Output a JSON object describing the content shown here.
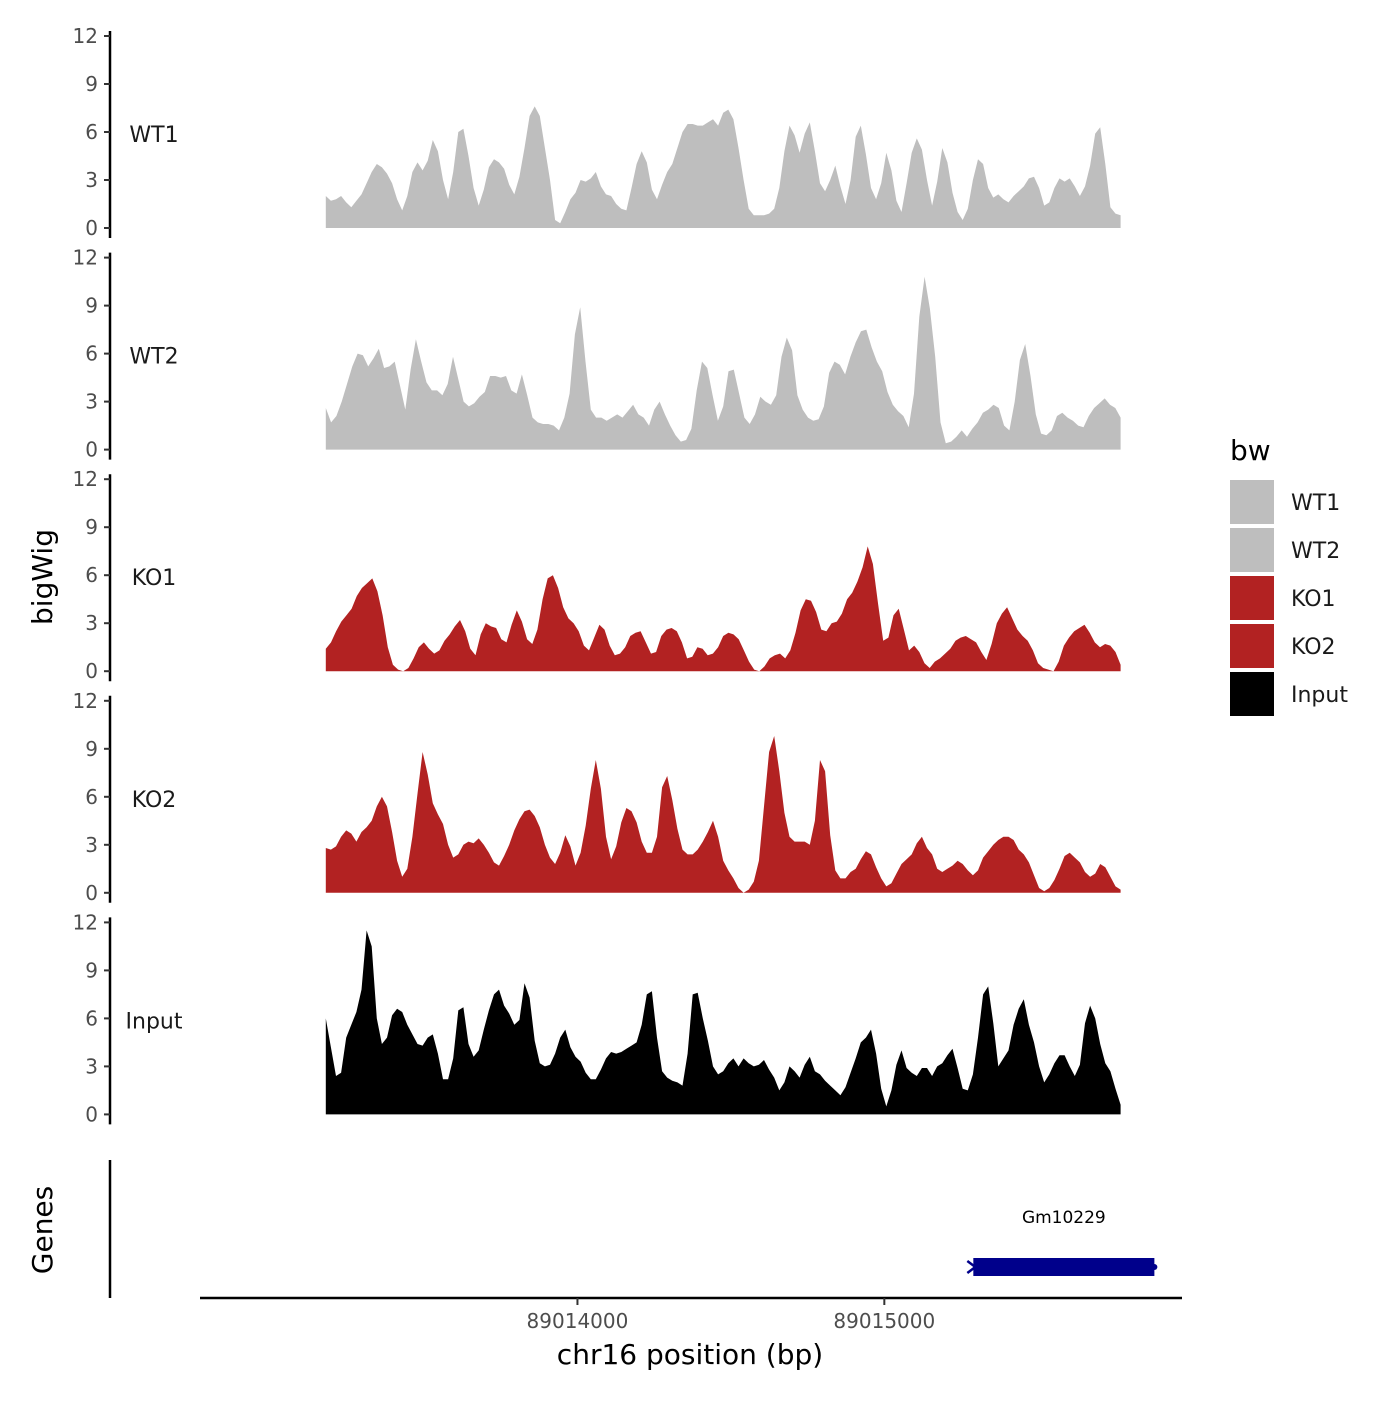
{
  "chart_data": {
    "type": "area",
    "xlabel": "chr16 position (bp)",
    "ylabel": "bigWig",
    "gene_track_label": "Genes",
    "xlim": [
      89012770,
      89015970
    ],
    "ylim": [
      0,
      12
    ],
    "yticks": [
      "0",
      "3",
      "6",
      "9",
      "12"
    ],
    "xticks": [
      {
        "value": 89014000,
        "label": "89014000"
      },
      {
        "value": 89015000,
        "label": "89015000"
      }
    ],
    "x_start": 89013180,
    "x_end": 89015770,
    "legend": {
      "title": "bw",
      "placement": "right",
      "entries": [
        {
          "name": "WT1",
          "color": "#bebebe"
        },
        {
          "name": "WT2",
          "color": "#bebebe"
        },
        {
          "name": "KO1",
          "color": "#b22222"
        },
        {
          "name": "KO2",
          "color": "#b22222"
        },
        {
          "name": "Input",
          "color": "#000000"
        }
      ]
    },
    "series": [
      {
        "name": "WT1",
        "color": "#bebebe",
        "values": [
          2.0,
          1.7,
          1.8,
          2.0,
          1.6,
          1.3,
          1.7,
          2.1,
          2.8,
          3.5,
          4.0,
          3.8,
          3.4,
          2.8,
          1.8,
          1.1,
          2.0,
          3.5,
          4.1,
          3.6,
          4.2,
          5.5,
          4.8,
          3.0,
          1.8,
          3.5,
          6.0,
          6.2,
          4.5,
          2.5,
          1.4,
          2.4,
          3.8,
          4.3,
          4.1,
          3.7,
          2.7,
          2.1,
          3.2,
          5.0,
          7.0,
          7.6,
          7.0,
          5.0,
          3.0,
          0.5,
          0.3,
          1.0,
          1.8,
          2.2,
          3.0,
          2.9,
          3.1,
          3.5,
          2.6,
          2.1,
          2.0,
          1.5,
          1.2,
          1.1,
          2.5,
          4.0,
          4.8,
          4.1,
          2.4,
          1.8,
          2.7,
          3.5,
          4.0,
          5.0,
          6.0,
          6.5,
          6.5,
          6.4,
          6.4,
          6.6,
          6.8,
          6.4,
          7.2,
          7.4,
          6.8,
          5.0,
          3.0,
          1.2,
          0.8,
          0.8,
          0.8,
          0.9,
          1.2,
          2.5,
          4.8,
          6.4,
          5.8,
          4.7,
          5.9,
          6.6,
          4.8,
          2.8,
          2.3,
          3.0,
          3.9,
          2.6,
          1.5,
          3.0,
          5.7,
          6.4,
          4.6,
          2.5,
          1.8,
          2.8,
          4.7,
          3.6,
          1.7,
          1.0,
          2.8,
          4.7,
          5.6,
          4.9,
          3.0,
          1.4,
          2.9,
          5.0,
          4.1,
          2.2,
          1.0,
          0.5,
          1.2,
          3.0,
          4.3,
          4.0,
          2.5,
          1.9,
          2.1,
          1.8,
          1.6,
          2.0,
          2.3,
          2.6,
          3.1,
          3.2,
          2.5,
          1.4,
          1.6,
          2.5,
          3.1,
          2.9,
          3.1,
          2.6,
          2.0,
          2.6,
          3.9,
          5.9,
          6.3,
          4.0,
          1.3,
          0.9,
          0.8
        ]
      },
      {
        "name": "WT2",
        "color": "#bebebe",
        "values": [
          2.6,
          1.7,
          2.1,
          3.0,
          4.1,
          5.2,
          6.0,
          5.9,
          5.2,
          5.7,
          6.3,
          5.1,
          5.2,
          5.5,
          4.0,
          2.5,
          5.0,
          6.9,
          5.5,
          4.2,
          3.7,
          3.7,
          3.4,
          4.1,
          5.8,
          4.4,
          3.0,
          2.7,
          2.9,
          3.3,
          3.6,
          4.6,
          4.6,
          4.5,
          4.6,
          3.7,
          3.5,
          4.7,
          3.4,
          2.0,
          1.7,
          1.6,
          1.6,
          1.5,
          1.2,
          2.0,
          3.5,
          7.2,
          8.9,
          5.5,
          2.5,
          2.0,
          2.0,
          1.8,
          2.0,
          2.2,
          2.0,
          2.4,
          2.8,
          2.2,
          2.0,
          1.5,
          2.5,
          3.0,
          2.2,
          1.5,
          0.9,
          0.5,
          0.6,
          1.3,
          3.7,
          5.5,
          5.1,
          3.4,
          1.8,
          2.7,
          4.9,
          5.0,
          3.5,
          2.0,
          1.6,
          2.2,
          3.3,
          3.0,
          2.8,
          3.4,
          5.8,
          7.0,
          6.2,
          3.4,
          2.5,
          2.0,
          1.8,
          1.9,
          2.7,
          4.8,
          5.5,
          5.3,
          4.7,
          5.8,
          6.7,
          7.4,
          7.5,
          6.4,
          5.5,
          4.9,
          3.6,
          2.8,
          2.4,
          2.1,
          1.4,
          3.5,
          8.3,
          10.8,
          8.8,
          5.8,
          1.7,
          0.4,
          0.5,
          0.8,
          1.2,
          0.8,
          1.3,
          1.7,
          2.3,
          2.5,
          2.8,
          2.6,
          1.5,
          1.2,
          3.0,
          5.6,
          6.6,
          4.6,
          2.2,
          1.0,
          0.9,
          1.2,
          2.1,
          2.3,
          2.0,
          1.8,
          1.5,
          1.4,
          2.1,
          2.6,
          2.9,
          3.2,
          2.8,
          2.6,
          2.0
        ]
      },
      {
        "name": "KO1",
        "color": "#b22222",
        "values": [
          1.4,
          1.8,
          2.5,
          3.1,
          3.5,
          3.9,
          4.7,
          5.2,
          5.5,
          5.8,
          5.0,
          3.5,
          1.5,
          0.4,
          0.1,
          0.0,
          0.2,
          0.8,
          1.5,
          1.8,
          1.4,
          1.1,
          1.3,
          1.9,
          2.3,
          2.8,
          3.2,
          2.5,
          1.4,
          1.0,
          2.3,
          3.0,
          2.8,
          2.7,
          2.0,
          1.8,
          2.9,
          3.8,
          3.1,
          2.0,
          1.7,
          2.6,
          4.5,
          5.8,
          6.0,
          5.2,
          4.0,
          3.3,
          3.0,
          2.5,
          1.6,
          1.3,
          2.1,
          2.9,
          2.6,
          1.6,
          1.0,
          1.1,
          1.5,
          2.2,
          2.4,
          2.5,
          1.8,
          1.1,
          1.2,
          2.2,
          2.6,
          2.7,
          2.5,
          1.8,
          0.8,
          0.9,
          1.5,
          1.4,
          1.0,
          1.1,
          1.5,
          2.2,
          2.4,
          2.3,
          2.0,
          1.3,
          0.6,
          0.1,
          0.0,
          0.3,
          0.8,
          1.0,
          1.1,
          0.8,
          1.3,
          2.4,
          3.8,
          4.5,
          4.4,
          3.7,
          2.6,
          2.5,
          3.0,
          3.1,
          3.6,
          4.5,
          4.9,
          5.6,
          6.5,
          7.8,
          6.7,
          4.2,
          1.9,
          2.1,
          3.5,
          3.9,
          2.6,
          1.3,
          1.6,
          1.2,
          0.5,
          0.2,
          0.6,
          0.8,
          1.1,
          1.4,
          1.9,
          2.1,
          2.2,
          2.0,
          1.8,
          1.2,
          0.7,
          1.7,
          3.0,
          3.6,
          4.0,
          3.3,
          2.6,
          2.2,
          1.9,
          1.3,
          0.5,
          0.2,
          0.1,
          0.0,
          0.6,
          1.6,
          2.1,
          2.5,
          2.7,
          2.9,
          2.4,
          1.8,
          1.5,
          1.7,
          1.6,
          1.2,
          0.4
        ]
      },
      {
        "name": "KO2",
        "color": "#b22222",
        "values": [
          2.8,
          2.7,
          2.9,
          3.5,
          3.9,
          3.7,
          3.2,
          3.8,
          4.1,
          4.5,
          5.4,
          6.0,
          5.4,
          3.8,
          2.0,
          1.0,
          1.5,
          3.5,
          6.2,
          8.8,
          7.4,
          5.6,
          4.9,
          4.3,
          3.0,
          2.2,
          2.4,
          3.0,
          3.2,
          3.1,
          3.4,
          3.0,
          2.5,
          1.9,
          1.7,
          2.3,
          3.0,
          3.9,
          4.6,
          5.1,
          5.2,
          4.8,
          4.1,
          3.0,
          2.2,
          1.8,
          2.5,
          3.6,
          2.9,
          1.7,
          2.5,
          4.2,
          6.5,
          8.3,
          6.5,
          3.5,
          2.1,
          2.9,
          4.4,
          5.3,
          5.1,
          4.4,
          3.2,
          2.5,
          2.5,
          3.5,
          6.6,
          7.3,
          5.8,
          4.0,
          2.7,
          2.4,
          2.4,
          2.7,
          3.2,
          3.8,
          4.5,
          3.5,
          2.0,
          1.4,
          0.9,
          0.3,
          0.0,
          0.2,
          0.7,
          2.0,
          5.4,
          8.8,
          9.8,
          7.6,
          5.0,
          3.5,
          3.2,
          3.2,
          3.2,
          3.0,
          4.5,
          8.3,
          7.6,
          3.6,
          1.4,
          0.9,
          0.9,
          1.3,
          1.5,
          2.1,
          2.6,
          2.4,
          1.6,
          0.9,
          0.4,
          0.6,
          1.2,
          1.8,
          2.1,
          2.4,
          3.1,
          3.5,
          2.8,
          2.4,
          1.5,
          1.3,
          1.5,
          1.7,
          2.0,
          1.8,
          1.4,
          1.1,
          1.4,
          2.2,
          2.6,
          3.0,
          3.3,
          3.5,
          3.5,
          3.3,
          2.7,
          2.4,
          1.9,
          1.1,
          0.3,
          0.1,
          0.3,
          0.8,
          1.5,
          2.3,
          2.5,
          2.2,
          1.9,
          1.3,
          1.0,
          1.2,
          1.8,
          1.6,
          1.0,
          0.4,
          0.2
        ]
      },
      {
        "name": "Input",
        "color": "#000000",
        "values": [
          6.0,
          4.2,
          2.4,
          2.6,
          4.8,
          5.6,
          6.4,
          7.8,
          11.5,
          10.5,
          6.0,
          4.4,
          4.8,
          6.2,
          6.6,
          6.4,
          5.6,
          5.0,
          4.4,
          4.3,
          4.8,
          5.0,
          3.8,
          2.2,
          2.2,
          3.5,
          6.5,
          6.7,
          4.4,
          3.6,
          4.0,
          5.3,
          6.5,
          7.5,
          7.8,
          6.8,
          6.3,
          5.6,
          5.9,
          8.2,
          7.3,
          4.6,
          3.2,
          3.0,
          3.1,
          3.8,
          4.8,
          5.3,
          4.2,
          3.6,
          3.3,
          2.6,
          2.2,
          2.2,
          2.8,
          3.5,
          3.9,
          3.8,
          3.9,
          4.1,
          4.3,
          4.5,
          5.6,
          7.5,
          7.7,
          4.8,
          2.7,
          2.3,
          2.1,
          2.0,
          1.8,
          3.8,
          7.5,
          7.6,
          6.0,
          4.6,
          3.0,
          2.5,
          2.7,
          3.2,
          3.5,
          3.0,
          3.5,
          3.2,
          3.0,
          3.1,
          3.4,
          2.8,
          2.3,
          1.5,
          2.0,
          3.0,
          2.7,
          2.3,
          3.1,
          3.6,
          2.7,
          2.5,
          2.1,
          1.8,
          1.5,
          1.2,
          1.7,
          2.6,
          3.5,
          4.5,
          4.8,
          5.3,
          3.8,
          1.6,
          0.5,
          1.5,
          3.1,
          4.0,
          2.9,
          2.6,
          2.4,
          2.9,
          2.9,
          2.4,
          3.0,
          3.2,
          3.7,
          4.1,
          2.9,
          1.6,
          1.5,
          2.5,
          4.8,
          7.5,
          8.0,
          5.7,
          3.0,
          3.5,
          4.0,
          5.6,
          6.6,
          7.2,
          5.6,
          4.5,
          3.0,
          2.0,
          2.5,
          3.2,
          3.7,
          3.7,
          3.0,
          2.4,
          3.1,
          5.7,
          6.8,
          6.0,
          4.4,
          3.2,
          2.7,
          1.6,
          0.6
        ]
      }
    ],
    "genes": [
      {
        "name": "Gm10229",
        "start": 89015290,
        "end": 89015880,
        "strand": "-",
        "color": "#00008b"
      }
    ]
  }
}
